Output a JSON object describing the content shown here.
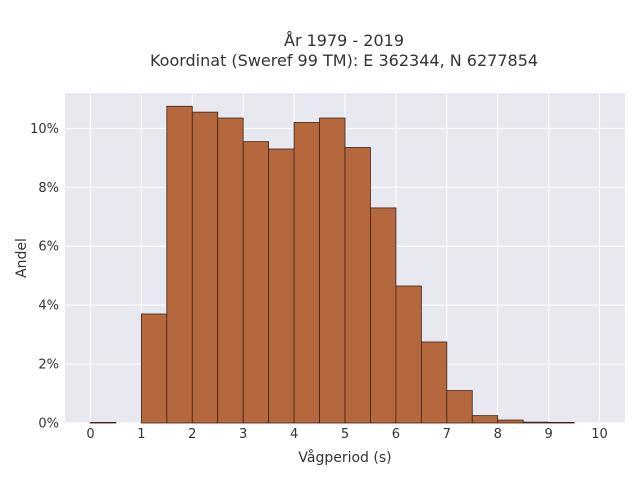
{
  "chart_data": {
    "type": "bar",
    "title_lines": [
      "År 1979 - 2019",
      "Koordinat (Sweref 99 TM): E 362344, N 6277854"
    ],
    "xlabel": "Vågperiod (s)",
    "ylabel": "Andel",
    "bin_width": 0.5,
    "bins_start": [
      0,
      0.5,
      1,
      1.5,
      2,
      2.5,
      3,
      3.5,
      4,
      4.5,
      5,
      5.5,
      6,
      6.5,
      7,
      7.5,
      8,
      8.5,
      9,
      9.5
    ],
    "values": [
      0.02,
      0,
      3.7,
      10.75,
      10.55,
      10.35,
      9.55,
      9.3,
      10.2,
      10.35,
      9.35,
      7.3,
      4.65,
      2.75,
      1.1,
      0.25,
      0.1,
      0.03,
      0.02,
      0
    ],
    "xlim": [
      -0.5,
      10.5
    ],
    "ylim": [
      0,
      11.2
    ],
    "x_ticks": [
      "0",
      "1",
      "2",
      "3",
      "4",
      "5",
      "6",
      "7",
      "8",
      "9",
      "10"
    ],
    "x_tick_values": [
      0,
      1,
      2,
      3,
      4,
      5,
      6,
      7,
      8,
      9,
      10
    ],
    "y_ticks": [
      "0%",
      "2%",
      "4%",
      "6%",
      "8%",
      "10%"
    ],
    "y_tick_values": [
      0,
      2,
      4,
      6,
      8,
      10
    ],
    "grid": true,
    "colors": {
      "bar_fill": "#b5683d",
      "bar_stroke": "#3f2417",
      "plot_background": "#e8e8f0",
      "grid": "#ffffff"
    }
  }
}
